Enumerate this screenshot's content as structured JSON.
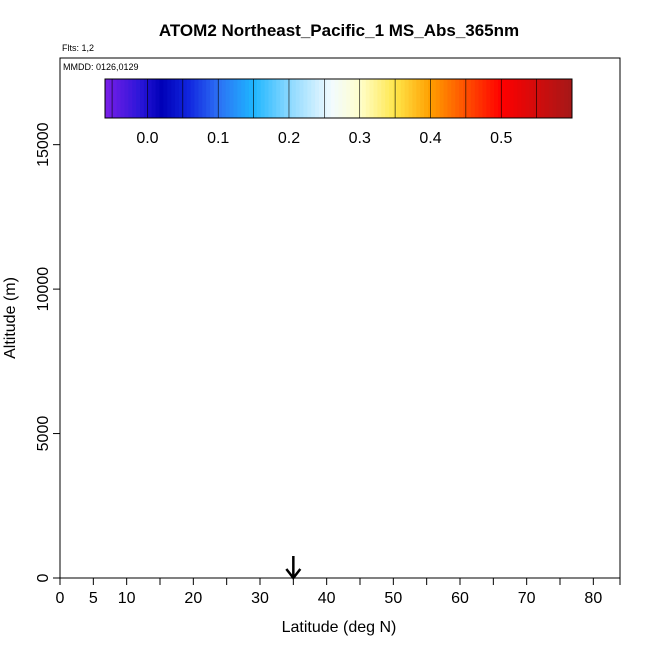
{
  "chart_data": {
    "type": "heatmap",
    "title": "ATOM2 Northeast_Pacific_1 MS_Abs_365nm",
    "flights_label": "Flts: 1,2",
    "dates_label": "MMDD: 0126,0129",
    "xlabel": "Latitude (deg N)",
    "ylabel": "Altitude (m)",
    "xlim": [
      0,
      84
    ],
    "ylim": [
      0,
      18000
    ],
    "x_ticks": [
      0,
      5,
      10,
      20,
      30,
      40,
      50,
      60,
      70,
      80
    ],
    "x_minor_ticks": [
      15,
      25,
      35,
      45,
      55,
      65,
      75,
      84
    ],
    "y_ticks": [
      0,
      5000,
      10000,
      15000
    ],
    "colorbar": {
      "ticks": [
        0.0,
        0.1,
        0.2,
        0.3,
        0.4,
        0.5
      ],
      "tick_labels": [
        "0.0",
        "0.1",
        "0.2",
        "0.3",
        "0.4",
        "0.5"
      ],
      "range": [
        -0.06,
        0.6
      ],
      "stops": [
        {
          "v": -0.06,
          "c": "#7a1ee8"
        },
        {
          "v": -0.01,
          "c": "#2a16d8"
        },
        {
          "v": 0.02,
          "c": "#0000b8"
        },
        {
          "v": 0.06,
          "c": "#1228e0"
        },
        {
          "v": 0.1,
          "c": "#2c70f4"
        },
        {
          "v": 0.15,
          "c": "#1eb6ff"
        },
        {
          "v": 0.2,
          "c": "#8ad8ff"
        },
        {
          "v": 0.26,
          "c": "#f2fbff"
        },
        {
          "v": 0.3,
          "c": "#ffffcc"
        },
        {
          "v": 0.35,
          "c": "#ffe64a"
        },
        {
          "v": 0.4,
          "c": "#ff9f00"
        },
        {
          "v": 0.5,
          "c": "#ff0000"
        },
        {
          "v": 0.6,
          "c": "#a51818"
        }
      ]
    },
    "marker_latitude": 35,
    "colors": {
      "background": "#ffffff",
      "axis": "#000000",
      "point_marker": "#ffffff"
    }
  }
}
